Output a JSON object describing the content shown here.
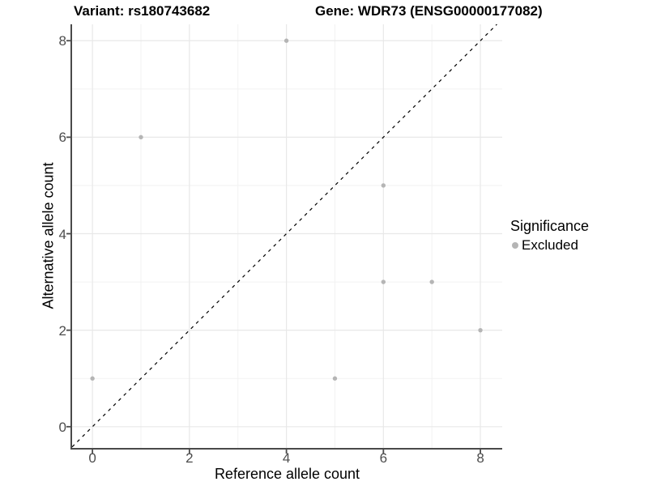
{
  "chart_data": {
    "type": "scatter",
    "title_left": "Variant: rs180743682",
    "title_right": "Gene: WDR73 (ENSG00000177082)",
    "xlabel": "Reference allele count",
    "ylabel": "Alternative allele count",
    "xlim": [
      -0.42,
      8.45
    ],
    "ylim": [
      -0.44,
      8.34
    ],
    "x_ticks": [
      0,
      2,
      4,
      6,
      8
    ],
    "y_ticks": [
      0,
      2,
      4,
      6,
      8
    ],
    "x_minor": [
      1,
      3,
      5,
      7
    ],
    "y_minor": [
      1,
      3,
      5,
      7
    ],
    "grid": true,
    "grid_major_color": "#e8e8e8",
    "grid_minor_color": "#f2f2f2",
    "axis_color": "#4a4a4a",
    "identity_line": {
      "style": "dashed",
      "color": "#000000"
    },
    "point_color": "#b5b5b5",
    "points": [
      {
        "x": 0,
        "y": 1
      },
      {
        "x": 1,
        "y": 6
      },
      {
        "x": 4,
        "y": 8
      },
      {
        "x": 5,
        "y": 1
      },
      {
        "x": 6,
        "y": 3
      },
      {
        "x": 6,
        "y": 5
      },
      {
        "x": 7,
        "y": 3
      },
      {
        "x": 8,
        "y": 2
      }
    ],
    "legend": {
      "title": "Significance",
      "position": "right",
      "items": [
        {
          "label": "Excluded",
          "color": "#b5b5b5"
        }
      ]
    }
  }
}
